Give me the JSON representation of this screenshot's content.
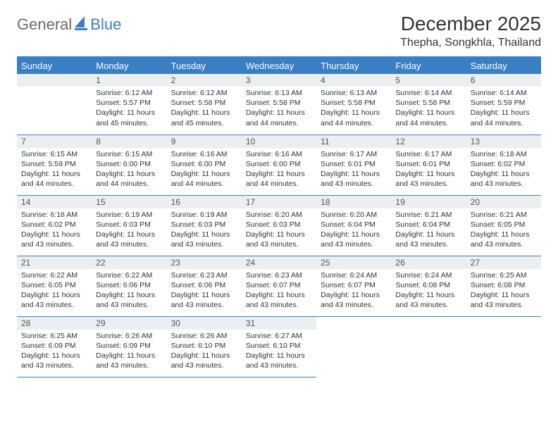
{
  "logo": {
    "general": "General",
    "blue": "Blue"
  },
  "header": {
    "month": "December 2025",
    "location": "Thepha, Songkhla, Thailand"
  },
  "weekdays": [
    "Sunday",
    "Monday",
    "Tuesday",
    "Wednesday",
    "Thursday",
    "Friday",
    "Saturday"
  ],
  "colors": {
    "accent": "#3a7fc4",
    "daynum_bg": "#eceef0",
    "text": "#333333"
  },
  "cells": {
    "r0c0": {
      "n": "",
      "sr": "",
      "ss": "",
      "dl": ""
    },
    "r0c1": {
      "n": "1",
      "sr": "Sunrise: 6:12 AM",
      "ss": "Sunset: 5:57 PM",
      "dl": "Daylight: 11 hours and 45 minutes."
    },
    "r0c2": {
      "n": "2",
      "sr": "Sunrise: 6:12 AM",
      "ss": "Sunset: 5:58 PM",
      "dl": "Daylight: 11 hours and 45 minutes."
    },
    "r0c3": {
      "n": "3",
      "sr": "Sunrise: 6:13 AM",
      "ss": "Sunset: 5:58 PM",
      "dl": "Daylight: 11 hours and 44 minutes."
    },
    "r0c4": {
      "n": "4",
      "sr": "Sunrise: 6:13 AM",
      "ss": "Sunset: 5:58 PM",
      "dl": "Daylight: 11 hours and 44 minutes."
    },
    "r0c5": {
      "n": "5",
      "sr": "Sunrise: 6:14 AM",
      "ss": "Sunset: 5:58 PM",
      "dl": "Daylight: 11 hours and 44 minutes."
    },
    "r0c6": {
      "n": "6",
      "sr": "Sunrise: 6:14 AM",
      "ss": "Sunset: 5:59 PM",
      "dl": "Daylight: 11 hours and 44 minutes."
    },
    "r1c0": {
      "n": "7",
      "sr": "Sunrise: 6:15 AM",
      "ss": "Sunset: 5:59 PM",
      "dl": "Daylight: 11 hours and 44 minutes."
    },
    "r1c1": {
      "n": "8",
      "sr": "Sunrise: 6:15 AM",
      "ss": "Sunset: 6:00 PM",
      "dl": "Daylight: 11 hours and 44 minutes."
    },
    "r1c2": {
      "n": "9",
      "sr": "Sunrise: 6:16 AM",
      "ss": "Sunset: 6:00 PM",
      "dl": "Daylight: 11 hours and 44 minutes."
    },
    "r1c3": {
      "n": "10",
      "sr": "Sunrise: 6:16 AM",
      "ss": "Sunset: 6:00 PM",
      "dl": "Daylight: 11 hours and 44 minutes."
    },
    "r1c4": {
      "n": "11",
      "sr": "Sunrise: 6:17 AM",
      "ss": "Sunset: 6:01 PM",
      "dl": "Daylight: 11 hours and 43 minutes."
    },
    "r1c5": {
      "n": "12",
      "sr": "Sunrise: 6:17 AM",
      "ss": "Sunset: 6:01 PM",
      "dl": "Daylight: 11 hours and 43 minutes."
    },
    "r1c6": {
      "n": "13",
      "sr": "Sunrise: 6:18 AM",
      "ss": "Sunset: 6:02 PM",
      "dl": "Daylight: 11 hours and 43 minutes."
    },
    "r2c0": {
      "n": "14",
      "sr": "Sunrise: 6:18 AM",
      "ss": "Sunset: 6:02 PM",
      "dl": "Daylight: 11 hours and 43 minutes."
    },
    "r2c1": {
      "n": "15",
      "sr": "Sunrise: 6:19 AM",
      "ss": "Sunset: 6:03 PM",
      "dl": "Daylight: 11 hours and 43 minutes."
    },
    "r2c2": {
      "n": "16",
      "sr": "Sunrise: 6:19 AM",
      "ss": "Sunset: 6:03 PM",
      "dl": "Daylight: 11 hours and 43 minutes."
    },
    "r2c3": {
      "n": "17",
      "sr": "Sunrise: 6:20 AM",
      "ss": "Sunset: 6:03 PM",
      "dl": "Daylight: 11 hours and 43 minutes."
    },
    "r2c4": {
      "n": "18",
      "sr": "Sunrise: 6:20 AM",
      "ss": "Sunset: 6:04 PM",
      "dl": "Daylight: 11 hours and 43 minutes."
    },
    "r2c5": {
      "n": "19",
      "sr": "Sunrise: 6:21 AM",
      "ss": "Sunset: 6:04 PM",
      "dl": "Daylight: 11 hours and 43 minutes."
    },
    "r2c6": {
      "n": "20",
      "sr": "Sunrise: 6:21 AM",
      "ss": "Sunset: 6:05 PM",
      "dl": "Daylight: 11 hours and 43 minutes."
    },
    "r3c0": {
      "n": "21",
      "sr": "Sunrise: 6:22 AM",
      "ss": "Sunset: 6:05 PM",
      "dl": "Daylight: 11 hours and 43 minutes."
    },
    "r3c1": {
      "n": "22",
      "sr": "Sunrise: 6:22 AM",
      "ss": "Sunset: 6:06 PM",
      "dl": "Daylight: 11 hours and 43 minutes."
    },
    "r3c2": {
      "n": "23",
      "sr": "Sunrise: 6:23 AM",
      "ss": "Sunset: 6:06 PM",
      "dl": "Daylight: 11 hours and 43 minutes."
    },
    "r3c3": {
      "n": "24",
      "sr": "Sunrise: 6:23 AM",
      "ss": "Sunset: 6:07 PM",
      "dl": "Daylight: 11 hours and 43 minutes."
    },
    "r3c4": {
      "n": "25",
      "sr": "Sunrise: 6:24 AM",
      "ss": "Sunset: 6:07 PM",
      "dl": "Daylight: 11 hours and 43 minutes."
    },
    "r3c5": {
      "n": "26",
      "sr": "Sunrise: 6:24 AM",
      "ss": "Sunset: 6:08 PM",
      "dl": "Daylight: 11 hours and 43 minutes."
    },
    "r3c6": {
      "n": "27",
      "sr": "Sunrise: 6:25 AM",
      "ss": "Sunset: 6:08 PM",
      "dl": "Daylight: 11 hours and 43 minutes."
    },
    "r4c0": {
      "n": "28",
      "sr": "Sunrise: 6:25 AM",
      "ss": "Sunset: 6:09 PM",
      "dl": "Daylight: 11 hours and 43 minutes."
    },
    "r4c1": {
      "n": "29",
      "sr": "Sunrise: 6:26 AM",
      "ss": "Sunset: 6:09 PM",
      "dl": "Daylight: 11 hours and 43 minutes."
    },
    "r4c2": {
      "n": "30",
      "sr": "Sunrise: 6:26 AM",
      "ss": "Sunset: 6:10 PM",
      "dl": "Daylight: 11 hours and 43 minutes."
    },
    "r4c3": {
      "n": "31",
      "sr": "Sunrise: 6:27 AM",
      "ss": "Sunset: 6:10 PM",
      "dl": "Daylight: 11 hours and 43 minutes."
    },
    "r4c4": {
      "n": "",
      "sr": "",
      "ss": "",
      "dl": ""
    },
    "r4c5": {
      "n": "",
      "sr": "",
      "ss": "",
      "dl": ""
    },
    "r4c6": {
      "n": "",
      "sr": "",
      "ss": "",
      "dl": ""
    }
  }
}
